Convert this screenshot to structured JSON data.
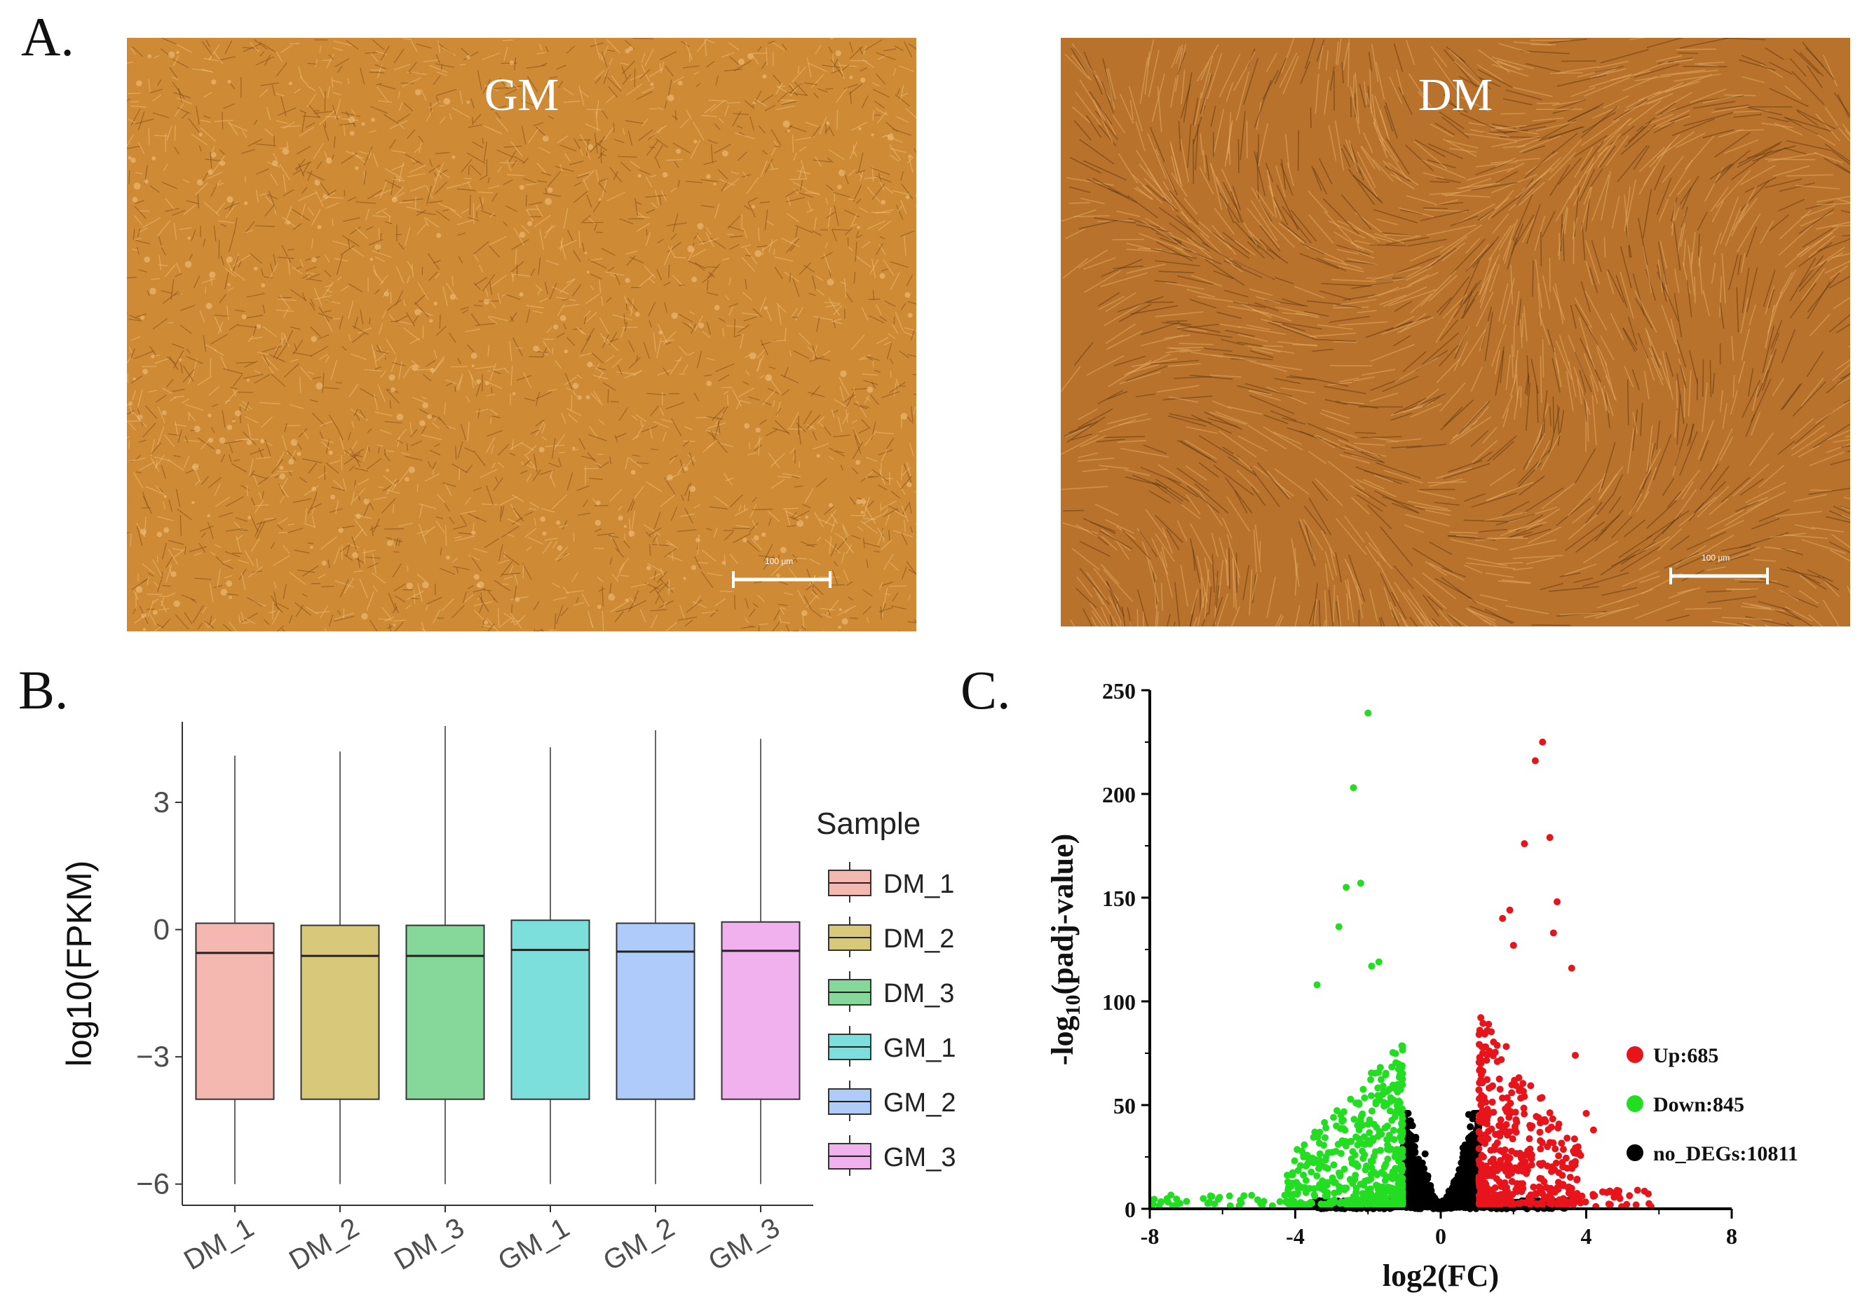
{
  "panel_labels": {
    "a": "A.",
    "b": "B.",
    "c": "C."
  },
  "micrographs": [
    {
      "label": "GM",
      "scale_text": "100 μm",
      "colors": {
        "base": "#cf8a35",
        "light": "#f1c27a",
        "dark": "#7d4a16"
      }
    },
    {
      "label": "DM",
      "scale_text": "100 μm",
      "colors": {
        "base": "#b9722b",
        "light": "#e8b06a",
        "dark": "#5e3510"
      }
    }
  ],
  "chart_data": [
    {
      "type": "box",
      "title": "",
      "ylabel": "log10(FPKM)",
      "xlabel": "",
      "ylim": [
        -6.5,
        4.9
      ],
      "yticks": [
        3,
        0,
        -3,
        -6
      ],
      "ytick_labels": [
        "3",
        "0",
        "−3",
        "−6"
      ],
      "legend_title": "Sample",
      "categories": [
        "DM_1",
        "DM_2",
        "DM_3",
        "GM_1",
        "GM_2",
        "GM_3"
      ],
      "boxes": [
        {
          "name": "DM_1",
          "whisker_low": -6.0,
          "q1": -4.0,
          "median": -0.55,
          "q3": 0.15,
          "whisker_high": 4.1,
          "color": "#f5b8b1"
        },
        {
          "name": "DM_2",
          "whisker_low": -6.0,
          "q1": -4.0,
          "median": -0.62,
          "q3": 0.1,
          "whisker_high": 4.2,
          "color": "#d8c97a"
        },
        {
          "name": "DM_3",
          "whisker_low": -6.0,
          "q1": -4.0,
          "median": -0.62,
          "q3": 0.1,
          "whisker_high": 4.8,
          "color": "#86d79a"
        },
        {
          "name": "GM_1",
          "whisker_low": -6.0,
          "q1": -4.0,
          "median": -0.48,
          "q3": 0.22,
          "whisker_high": 4.3,
          "color": "#7ddfdc"
        },
        {
          "name": "GM_2",
          "whisker_low": -6.0,
          "q1": -4.0,
          "median": -0.52,
          "q3": 0.15,
          "whisker_high": 4.7,
          "color": "#aecbfa"
        },
        {
          "name": "GM_3",
          "whisker_low": -6.0,
          "q1": -4.0,
          "median": -0.5,
          "q3": 0.18,
          "whisker_high": 4.5,
          "color": "#f1b1ee"
        }
      ]
    },
    {
      "type": "scatter",
      "title": "",
      "xlabel": "log2(FC)",
      "ylabel_prefix": "-log",
      "ylabel_sub": "10",
      "ylabel_suffix": "(padj-value)",
      "xlim": [
        -8,
        8
      ],
      "ylim": [
        0,
        250
      ],
      "xticks": [
        -8,
        -4,
        0,
        4,
        8
      ],
      "yticks": [
        0,
        50,
        100,
        150,
        200,
        250
      ],
      "series": [
        {
          "name": "Up:685",
          "color": "#e8141c",
          "count": 685
        },
        {
          "name": "Down:845",
          "color": "#22dd22",
          "count": 845
        },
        {
          "name": "no_DEGs:10811",
          "color": "#000000",
          "count": 10811
        }
      ],
      "highlight_points": {
        "down": [
          [
            -2.0,
            239
          ],
          [
            -2.4,
            203
          ],
          [
            -2.2,
            157
          ],
          [
            -2.6,
            155
          ],
          [
            -2.8,
            136
          ],
          [
            -1.7,
            119
          ],
          [
            -1.9,
            117
          ],
          [
            -3.4,
            108
          ]
        ],
        "up": [
          [
            2.8,
            225
          ],
          [
            2.6,
            216
          ],
          [
            3.0,
            179
          ],
          [
            2.3,
            176
          ],
          [
            3.2,
            148
          ],
          [
            1.9,
            144
          ],
          [
            1.7,
            140
          ],
          [
            3.1,
            133
          ],
          [
            2.0,
            127
          ],
          [
            3.6,
            116
          ],
          [
            3.7,
            74
          ],
          [
            4.0,
            46
          ],
          [
            4.2,
            38
          ]
        ]
      }
    }
  ]
}
